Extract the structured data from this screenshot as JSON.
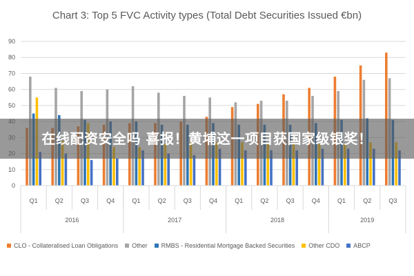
{
  "chart_data": {
    "type": "bar",
    "title": "Chart 3: Top 5 FVC Activity types (Total Debt Securities Issued €bn)",
    "xlabel": "",
    "ylabel": "",
    "ylim": [
      0,
      90
    ],
    "yticks": [
      "0",
      "10",
      "20",
      "30",
      "40",
      "50",
      "60",
      "70",
      "80",
      "90"
    ],
    "grid": true,
    "legend_position": "bottom",
    "groups": [
      {
        "label": "2016",
        "categories": [
          "Q1",
          "Q2",
          "Q3",
          "Q4"
        ]
      },
      {
        "label": "2017",
        "categories": [
          "Q1",
          "Q2",
          "Q3",
          "Q4"
        ]
      },
      {
        "label": "2018",
        "categories": [
          "Q1",
          "Q2",
          "Q3",
          "Q4"
        ]
      },
      {
        "label": "2019",
        "categories": [
          "Q1",
          "Q2",
          "Q3"
        ]
      }
    ],
    "categories": [
      "Q1",
      "Q2",
      "Q3",
      "Q4",
      "Q1",
      "Q2",
      "Q3",
      "Q4",
      "Q1",
      "Q2",
      "Q3",
      "Q4",
      "Q1",
      "Q2",
      "Q3"
    ],
    "series": [
      {
        "name": "CLO - Collateralised Loan Obligations",
        "color": "#ED7D31",
        "values": [
          36,
          36,
          37,
          38,
          39,
          39,
          40,
          43,
          49,
          51,
          57,
          61,
          68,
          75,
          83
        ]
      },
      {
        "name": "Other",
        "color": "#A5A5A5",
        "values": [
          68,
          61,
          59,
          60,
          62,
          58,
          56,
          55,
          52,
          53,
          53,
          56,
          59,
          66,
          67
        ]
      },
      {
        "name": "RMBS - Residential Mortgage Backed Securities",
        "color": "#2E75B6",
        "values": [
          45,
          44,
          41,
          40,
          40,
          38,
          38,
          39,
          38,
          38,
          38,
          39,
          41,
          42,
          41
        ]
      },
      {
        "name": "Other CDO",
        "color": "#FFC000",
        "values": [
          55,
          28,
          39,
          24,
          24,
          26,
          27,
          27,
          27,
          27,
          26,
          26,
          26,
          27,
          27
        ]
      },
      {
        "name": "ABCP",
        "color": "#4472C4",
        "values": [
          21,
          20,
          16,
          17,
          22,
          20,
          19,
          23,
          22,
          22,
          22,
          23,
          23,
          23,
          22
        ]
      }
    ]
  },
  "overlay": {
    "text": "在线配资安全吗 喜报！黄埔这一项目获国家级银奖！"
  }
}
